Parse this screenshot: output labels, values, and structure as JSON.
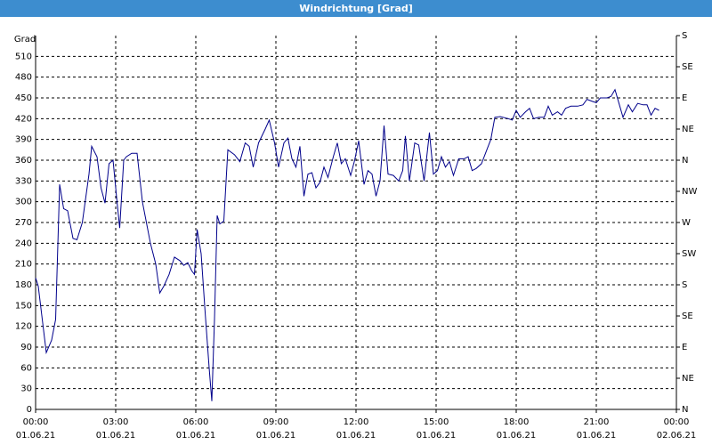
{
  "chart_data": {
    "type": "line",
    "title": "Windrichtung [Grad]",
    "y_label": "Grad",
    "xlim": [
      0,
      24
    ],
    "xticks": [
      {
        "value": 0,
        "label": "00:00",
        "date": "01.06.21"
      },
      {
        "value": 3,
        "label": "03:00",
        "date": "01.06.21"
      },
      {
        "value": 6,
        "label": "06:00",
        "date": "01.06.21"
      },
      {
        "value": 9,
        "label": "09:00",
        "date": "01.06.21"
      },
      {
        "value": 12,
        "label": "12:00",
        "date": "01.06.21"
      },
      {
        "value": 15,
        "label": "15:00",
        "date": "01.06.21"
      },
      {
        "value": 18,
        "label": "18:00",
        "date": "01.06.21"
      },
      {
        "value": 21,
        "label": "21:00",
        "date": "01.06.21"
      },
      {
        "value": 24,
        "label": "00:00",
        "date": "02.06.21"
      }
    ],
    "ylim": [
      0,
      540
    ],
    "yticks": [
      0,
      30,
      60,
      90,
      120,
      150,
      180,
      210,
      240,
      270,
      300,
      330,
      360,
      390,
      420,
      450,
      480,
      510
    ],
    "y2lim": [
      0,
      540
    ],
    "y2ticks": [
      {
        "value": 0,
        "label": "N"
      },
      {
        "value": 45,
        "label": "NE"
      },
      {
        "value": 90,
        "label": "E"
      },
      {
        "value": 135,
        "label": "SE"
      },
      {
        "value": 180,
        "label": "S"
      },
      {
        "value": 225,
        "label": "SW"
      },
      {
        "value": 270,
        "label": "W"
      },
      {
        "value": 315,
        "label": "NW"
      },
      {
        "value": 360,
        "label": "N"
      },
      {
        "value": 405,
        "label": "NE"
      },
      {
        "value": 450,
        "label": "E"
      },
      {
        "value": 495,
        "label": "SE"
      },
      {
        "value": 540,
        "label": "S"
      }
    ],
    "grid": true,
    "series": [
      {
        "color": "#00008b",
        "x": [
          0,
          0.1,
          0.4,
          0.6,
          0.75,
          0.9,
          1.05,
          1.2,
          1.4,
          1.55,
          1.75,
          2.0,
          2.1,
          2.3,
          2.45,
          2.6,
          2.75,
          2.9,
          3.05,
          3.15,
          3.3,
          3.4,
          3.6,
          3.8,
          4.0,
          4.3,
          4.5,
          4.65,
          4.8,
          5.0,
          5.2,
          5.4,
          5.55,
          5.7,
          5.85,
          5.95,
          6.05,
          6.2,
          6.35,
          6.5,
          6.6,
          6.7,
          6.8,
          6.9,
          7.05,
          7.2,
          7.45,
          7.65,
          7.85,
          8.0,
          8.15,
          8.35,
          8.6,
          8.75,
          8.95,
          9.1,
          9.3,
          9.45,
          9.6,
          9.75,
          9.9,
          10.05,
          10.2,
          10.35,
          10.5,
          10.65,
          10.8,
          10.95,
          11.15,
          11.3,
          11.45,
          11.6,
          11.8,
          11.95,
          12.1,
          12.3,
          12.45,
          12.6,
          12.75,
          12.9,
          13.05,
          13.2,
          13.4,
          13.6,
          13.75,
          13.85,
          14.0,
          14.2,
          14.35,
          14.55,
          14.75,
          14.9,
          15.05,
          15.2,
          15.35,
          15.5,
          15.65,
          15.85,
          16.05,
          16.2,
          16.35,
          16.5,
          16.7,
          16.9,
          17.05,
          17.2,
          17.4,
          17.7,
          17.85,
          18.0,
          18.15,
          18.35,
          18.5,
          18.65,
          18.85,
          19.05,
          19.2,
          19.35,
          19.55,
          19.7,
          19.85,
          20.05,
          20.3,
          20.5,
          20.65,
          20.85,
          21.0,
          21.15,
          21.4,
          21.55,
          21.7,
          21.85,
          22.0,
          22.2,
          22.35,
          22.55,
          22.75,
          22.9,
          23.05,
          23.2,
          23.35
        ],
        "values": [
          190,
          178,
          82,
          100,
          130,
          325,
          290,
          287,
          247,
          245,
          270,
          340,
          380,
          365,
          320,
          298,
          355,
          360,
          300,
          262,
          360,
          365,
          370,
          370,
          300,
          240,
          210,
          168,
          178,
          195,
          220,
          215,
          208,
          212,
          200,
          195,
          260,
          225,
          140,
          60,
          12,
          130,
          280,
          268,
          272,
          375,
          368,
          358,
          385,
          380,
          350,
          385,
          405,
          418,
          385,
          350,
          385,
          392,
          362,
          350,
          380,
          308,
          340,
          342,
          320,
          328,
          350,
          335,
          365,
          385,
          355,
          362,
          338,
          360,
          388,
          325,
          345,
          340,
          308,
          330,
          410,
          340,
          338,
          330,
          345,
          395,
          330,
          385,
          382,
          330,
          400,
          340,
          345,
          365,
          350,
          358,
          338,
          362,
          362,
          365,
          345,
          348,
          355,
          375,
          390,
          422,
          423,
          420,
          418,
          432,
          422,
          430,
          435,
          420,
          422,
          422,
          438,
          425,
          430,
          425,
          435,
          438,
          438,
          440,
          448,
          445,
          443,
          450,
          450,
          452,
          462,
          442,
          422,
          440,
          430,
          442,
          440,
          440,
          425,
          435,
          432
        ]
      }
    ]
  }
}
